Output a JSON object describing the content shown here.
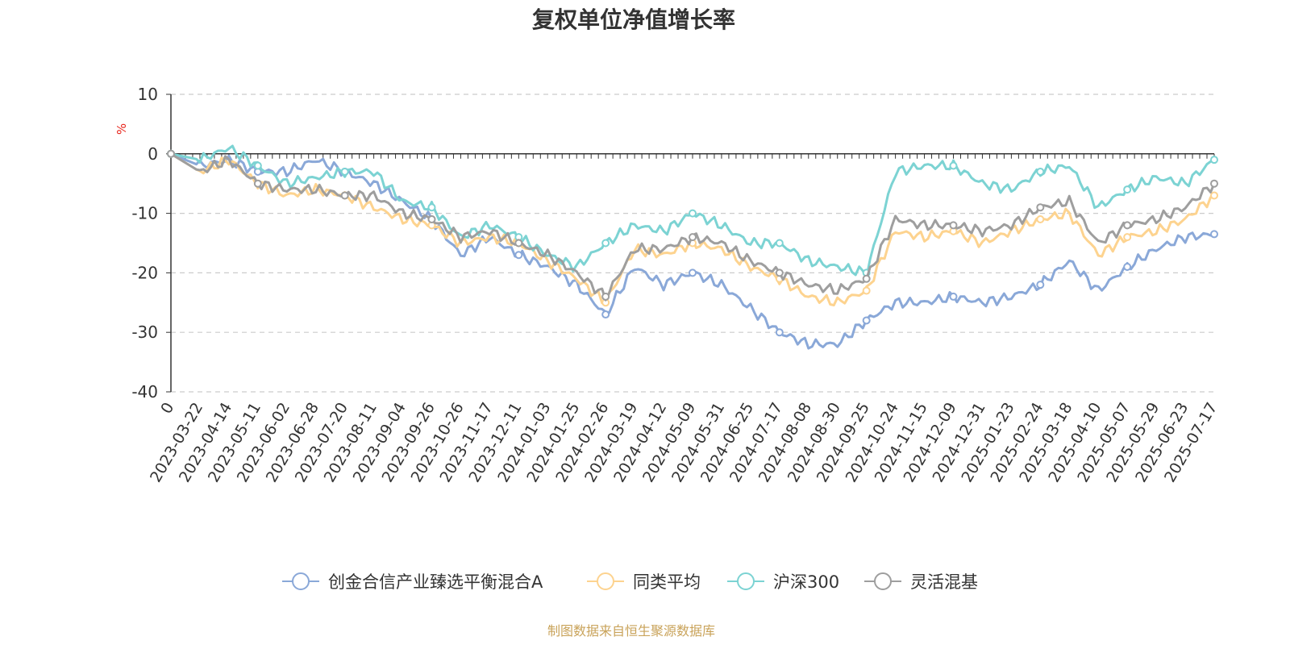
{
  "chart_data": {
    "type": "line",
    "title": "复权单位净值增长率",
    "y_unit": "%",
    "ylim": [
      -40,
      10
    ],
    "y_ticks": [
      "10",
      "0",
      "-10",
      "-20",
      "-30",
      "-40"
    ],
    "x_tick_labels": [
      "0",
      "2023-03-22",
      "2023-04-14",
      "2023-05-11",
      "2023-06-02",
      "2023-06-28",
      "2023-07-20",
      "2023-08-11",
      "2023-09-04",
      "2023-09-26",
      "2023-10-26",
      "2023-11-17",
      "2023-12-11",
      "2024-01-03",
      "2024-01-25",
      "2024-02-26",
      "2024-03-19",
      "2024-04-12",
      "2024-05-09",
      "2024-05-31",
      "2024-06-25",
      "2024-07-17",
      "2024-08-08",
      "2024-08-30",
      "2024-09-25",
      "2024-10-24",
      "2024-11-15",
      "2024-12-09",
      "2024-12-31",
      "2025-01-23",
      "2025-02-24",
      "2025-03-18",
      "2025-04-10",
      "2025-05-07",
      "2025-05-29",
      "2025-06-23",
      "2025-07-17"
    ],
    "grid": "horizontal-dashed",
    "legend_position": "bottom-center",
    "series": [
      {
        "name": "创金合信产业臻选平衡混合A",
        "color": "#8aa8d8",
        "values": [
          0,
          -2,
          -1,
          -3,
          -3,
          -1,
          -3,
          -5,
          -8,
          -11,
          -17,
          -14,
          -17,
          -19,
          -22,
          -27,
          -19,
          -22,
          -20,
          -22,
          -26,
          -30,
          -32,
          -32,
          -28,
          -25,
          -25,
          -24,
          -25,
          -24,
          -22,
          -18,
          -23,
          -19,
          -16,
          -14,
          -13.5
        ]
      },
      {
        "name": "同类平均",
        "color": "#fdd38f",
        "values": [
          0,
          -3,
          -1,
          -5,
          -7,
          -6,
          -7,
          -9,
          -11,
          -12,
          -15,
          -14,
          -15,
          -18,
          -21,
          -25,
          -16,
          -17,
          -15,
          -16,
          -19,
          -21,
          -24,
          -25,
          -23,
          -13,
          -14,
          -13,
          -15,
          -13,
          -11,
          -10,
          -17,
          -14,
          -13,
          -11,
          -7
        ]
      },
      {
        "name": "沪深300",
        "color": "#7cd3d3",
        "values": [
          0,
          -1,
          1,
          -2,
          -5,
          -4,
          -3,
          -3,
          -8,
          -9,
          -14,
          -12,
          -14,
          -17,
          -19,
          -15,
          -12,
          -13,
          -10,
          -12,
          -15,
          -15,
          -18,
          -19,
          -20,
          -3,
          -2,
          -2,
          -5,
          -6,
          -3,
          -2,
          -9,
          -6,
          -4,
          -5,
          -1
        ]
      },
      {
        "name": "灵活混基",
        "color": "#9e9e9e",
        "values": [
          0,
          -3,
          -1,
          -5,
          -6,
          -6,
          -7,
          -7,
          -10,
          -11,
          -14,
          -13,
          -15,
          -17,
          -20,
          -24,
          -16,
          -16,
          -14,
          -15,
          -18,
          -20,
          -22,
          -23,
          -21,
          -11,
          -12,
          -12,
          -13,
          -12,
          -9,
          -8,
          -15,
          -12,
          -11,
          -9,
          -5
        ]
      }
    ]
  },
  "footer": {
    "source": "制图数据来自恒生聚源数据库"
  }
}
